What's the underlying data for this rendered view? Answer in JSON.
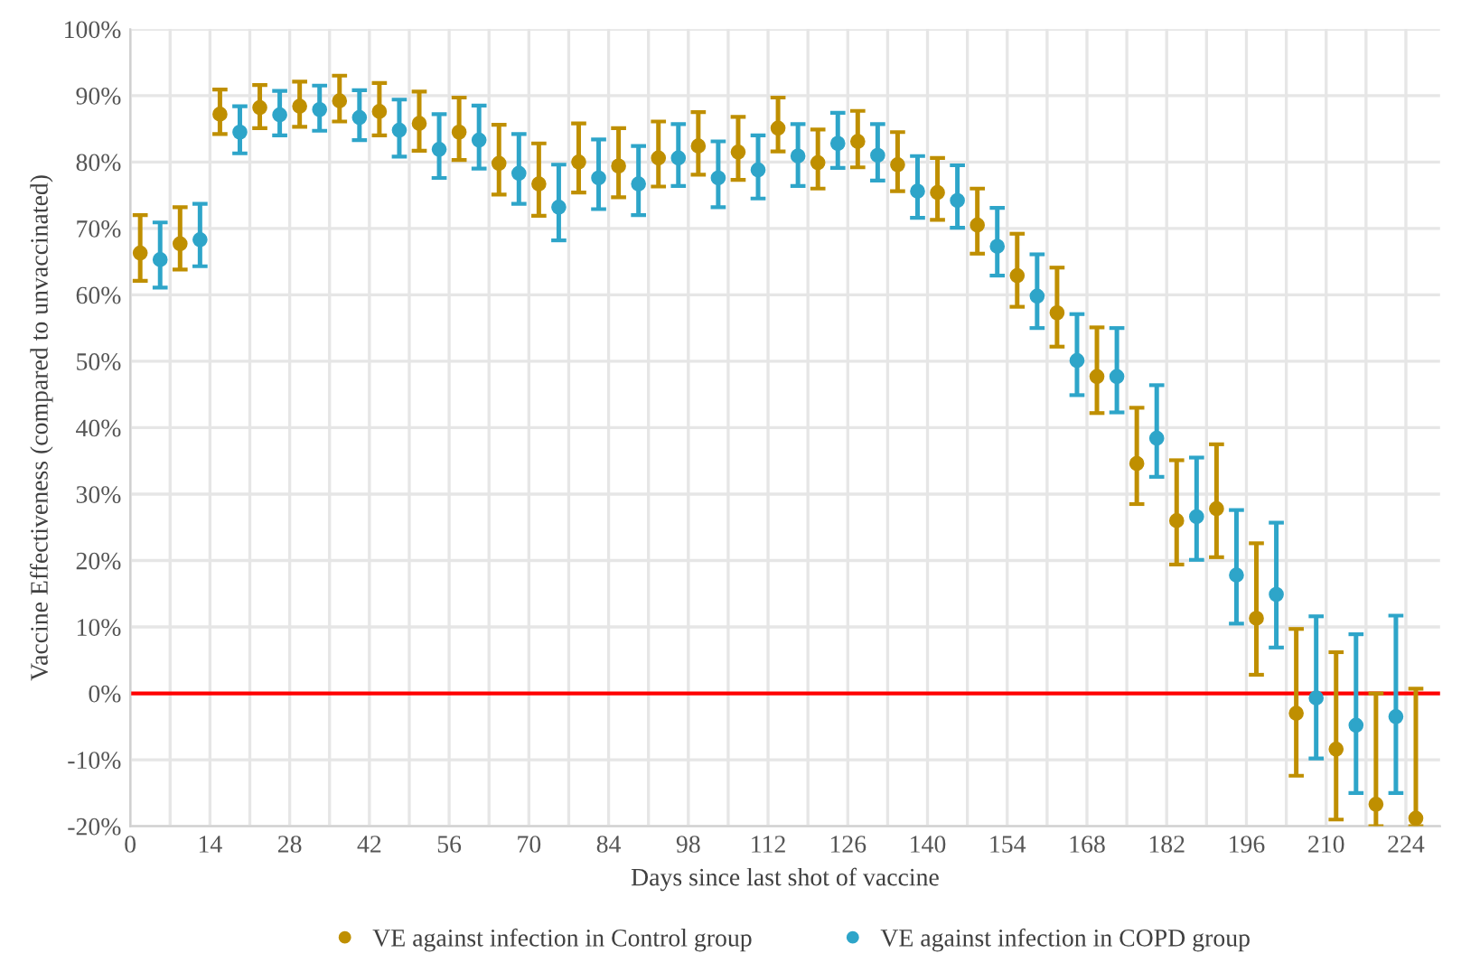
{
  "chart_data": {
    "type": "scatter",
    "xlabel": "Days since last shot of vaccine",
    "ylabel": "Vaccine Effectiveness (compared to unvaccinated)",
    "xlim": [
      0,
      230
    ],
    "ylim": [
      -20,
      100
    ],
    "xticks": [
      0,
      {
        "value": 7,
        "label": null
      },
      14,
      {
        "value": 21,
        "label": null
      },
      28,
      {
        "value": 35,
        "label": null
      },
      42,
      {
        "value": 49,
        "label": null
      },
      56,
      {
        "value": 63,
        "label": null
      },
      70,
      {
        "value": 77,
        "label": null
      },
      84,
      {
        "value": 91,
        "label": null
      },
      98,
      {
        "value": 105,
        "label": null
      },
      112,
      {
        "value": 119,
        "label": null
      },
      126,
      {
        "value": 133,
        "label": null
      },
      140,
      {
        "value": 147,
        "label": null
      },
      154,
      {
        "value": 161,
        "label": null
      },
      168,
      {
        "value": 175,
        "label": null
      },
      182,
      {
        "value": 189,
        "label": null
      },
      196,
      {
        "value": 203,
        "label": null
      },
      210,
      {
        "value": 217,
        "label": null
      },
      224
    ],
    "yticks": [
      {
        "value": -20,
        "label": "-20%"
      },
      {
        "value": -10,
        "label": "-10%"
      },
      {
        "value": 0,
        "label": "0%"
      },
      {
        "value": 10,
        "label": "10%"
      },
      {
        "value": 20,
        "label": "20%"
      },
      {
        "value": 30,
        "label": "30%"
      },
      {
        "value": 40,
        "label": "40%"
      },
      {
        "value": 50,
        "label": "50%"
      },
      {
        "value": 60,
        "label": "60%"
      },
      {
        "value": 70,
        "label": "70%"
      },
      {
        "value": 80,
        "label": "80%"
      },
      {
        "value": 90,
        "label": "90%"
      },
      {
        "value": 100,
        "label": "100%"
      }
    ],
    "grid": true,
    "legend": "bottom",
    "marker": "circle",
    "ref_lines": [
      {
        "axis": "y",
        "value": 0,
        "color": "#ff0000"
      }
    ],
    "series": [
      {
        "name": "VE against infection in Control group",
        "color": "#bf8f00",
        "x": [
          1.75,
          8.75,
          15.75,
          22.75,
          29.75,
          36.75,
          43.75,
          50.75,
          57.75,
          64.75,
          71.75,
          78.75,
          85.75,
          92.75,
          99.75,
          106.75,
          113.75,
          120.75,
          127.75,
          134.75,
          141.75,
          148.75,
          155.75,
          162.75,
          169.75,
          176.75,
          183.75,
          190.75,
          197.75,
          204.75,
          211.75,
          218.75,
          225.75
        ],
        "values": [
          66.3,
          67.7,
          87.2,
          88.2,
          88.4,
          89.2,
          87.6,
          85.8,
          84.5,
          79.8,
          76.7,
          80.0,
          79.4,
          80.6,
          82.4,
          81.5,
          85.1,
          79.9,
          83.1,
          79.6,
          75.4,
          70.5,
          62.9,
          57.3,
          47.7,
          34.6,
          26.0,
          27.8,
          11.3,
          -3.0,
          -8.4,
          -16.7,
          -18.8
        ],
        "errors": [
          [
            62.1,
            72.0
          ],
          [
            63.8,
            73.2
          ],
          [
            84.2,
            90.9
          ],
          [
            85.1,
            91.6
          ],
          [
            85.3,
            92.1
          ],
          [
            86.1,
            93.0
          ],
          [
            84.0,
            91.9
          ],
          [
            81.7,
            90.6
          ],
          [
            80.3,
            89.7
          ],
          [
            75.1,
            85.6
          ],
          [
            71.9,
            82.8
          ],
          [
            75.4,
            85.8
          ],
          [
            74.7,
            85.1
          ],
          [
            76.3,
            86.1
          ],
          [
            78.1,
            87.5
          ],
          [
            77.3,
            86.8
          ],
          [
            81.6,
            89.7
          ],
          [
            76.0,
            84.9
          ],
          [
            79.2,
            87.7
          ],
          [
            75.6,
            84.5
          ],
          [
            71.3,
            80.6
          ],
          [
            66.2,
            76.0
          ],
          [
            58.2,
            69.2
          ],
          [
            52.2,
            64.1
          ],
          [
            42.2,
            55.1
          ],
          [
            28.5,
            43.0
          ],
          [
            19.4,
            35.1
          ],
          [
            20.5,
            37.5
          ],
          [
            2.8,
            22.6
          ],
          [
            -12.4,
            9.7
          ],
          [
            -19.0,
            6.2
          ],
          [
            -20,
            0.0
          ],
          [
            -20,
            0.7
          ]
        ]
      },
      {
        "name": "VE against infection in COPD group",
        "color": "#2ea5c9",
        "x": [
          5.25,
          12.25,
          19.25,
          26.25,
          33.25,
          40.25,
          47.25,
          54.25,
          61.25,
          68.25,
          75.25,
          82.25,
          89.25,
          96.25,
          103.25,
          110.25,
          117.25,
          124.25,
          131.25,
          138.25,
          145.25,
          152.25,
          159.25,
          166.25,
          173.25,
          180.25,
          187.25,
          194.25,
          201.25,
          208.25,
          215.25,
          222.25
        ],
        "values": [
          65.3,
          68.3,
          84.5,
          87.1,
          87.9,
          86.7,
          84.8,
          81.9,
          83.3,
          78.3,
          73.2,
          77.6,
          76.7,
          80.6,
          77.6,
          78.8,
          80.9,
          82.8,
          81.0,
          75.6,
          74.2,
          67.3,
          59.8,
          50.1,
          47.7,
          38.4,
          26.6,
          17.8,
          14.9,
          -0.7,
          -4.8,
          -3.5
        ],
        "errors": [
          [
            61.1,
            70.9
          ],
          [
            64.3,
            73.7
          ],
          [
            81.3,
            88.4
          ],
          [
            84.0,
            90.7
          ],
          [
            84.7,
            91.5
          ],
          [
            83.3,
            90.8
          ],
          [
            80.8,
            89.4
          ],
          [
            77.6,
            87.2
          ],
          [
            79.0,
            88.5
          ],
          [
            73.7,
            84.2
          ],
          [
            68.2,
            79.6
          ],
          [
            72.9,
            83.4
          ],
          [
            72.0,
            82.4
          ],
          [
            76.4,
            85.7
          ],
          [
            73.2,
            83.1
          ],
          [
            74.5,
            84.0
          ],
          [
            76.4,
            85.7
          ],
          [
            79.1,
            87.4
          ],
          [
            77.2,
            85.7
          ],
          [
            71.6,
            80.9
          ],
          [
            70.1,
            79.5
          ],
          [
            62.9,
            73.1
          ],
          [
            55.0,
            66.1
          ],
          [
            44.9,
            57.1
          ],
          [
            42.3,
            55.0
          ],
          [
            32.6,
            46.4
          ],
          [
            20.1,
            35.5
          ],
          [
            10.5,
            27.6
          ],
          [
            6.9,
            25.7
          ],
          [
            -9.8,
            11.6
          ],
          [
            -15.0,
            8.9
          ],
          [
            -15.0,
            11.7
          ]
        ]
      }
    ]
  }
}
